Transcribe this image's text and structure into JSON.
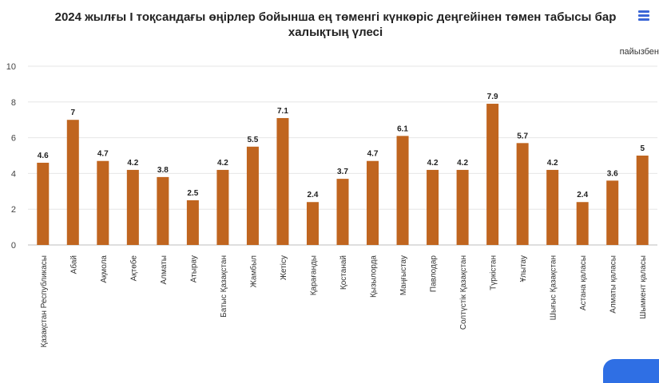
{
  "chart_data": {
    "type": "bar",
    "title": "2024 жылғы І тоқсандағы өңірлер бойынша ең төменгі күнкөріс деңгейінен төмен табысы бар халықтың үлесі",
    "unit": "пайызбен",
    "categories": [
      "Қазақстан Республикасы",
      "Абай",
      "Ақмола",
      "Ақтөбе",
      "Алматы",
      "Атырау",
      "Батыс Қазақстан",
      "Жамбыл",
      "Жетісу",
      "Қарағанды",
      "Қостанай",
      "Қызылорда",
      "Маңғыстау",
      "Павлодар",
      "Солтүстік Қазақстан",
      "Түркістан",
      "Ұлытау",
      "Шығыс Қазақстан",
      "Астана қаласы",
      "Алматы қаласы",
      "Шымкент қаласы"
    ],
    "values": [
      4.6,
      7,
      4.7,
      4.2,
      3.8,
      2.5,
      4.2,
      5.5,
      7.1,
      2.4,
      3.7,
      4.7,
      6.1,
      4.2,
      4.2,
      7.9,
      5.7,
      4.2,
      2.4,
      3.6,
      5
    ],
    "data_labels": [
      "4.6",
      "7",
      "4.7",
      "4.2",
      "3.8",
      "2.5",
      "4.2",
      "5.5",
      "7.1",
      "2.4",
      "3.7",
      "4.7",
      "6.1",
      "4.2",
      "4.2",
      "7.9",
      "5.7",
      "4.2",
      "2.4",
      "3.6",
      "5"
    ],
    "yticks": [
      "0",
      "2",
      "4",
      "6",
      "8",
      "10"
    ],
    "ylim": [
      0,
      10
    ],
    "grid": true,
    "legend": "none",
    "bar_color": "#c0651f"
  },
  "menu_icon": "hamburger-menu-icon",
  "accent_color": "#3b66d6"
}
